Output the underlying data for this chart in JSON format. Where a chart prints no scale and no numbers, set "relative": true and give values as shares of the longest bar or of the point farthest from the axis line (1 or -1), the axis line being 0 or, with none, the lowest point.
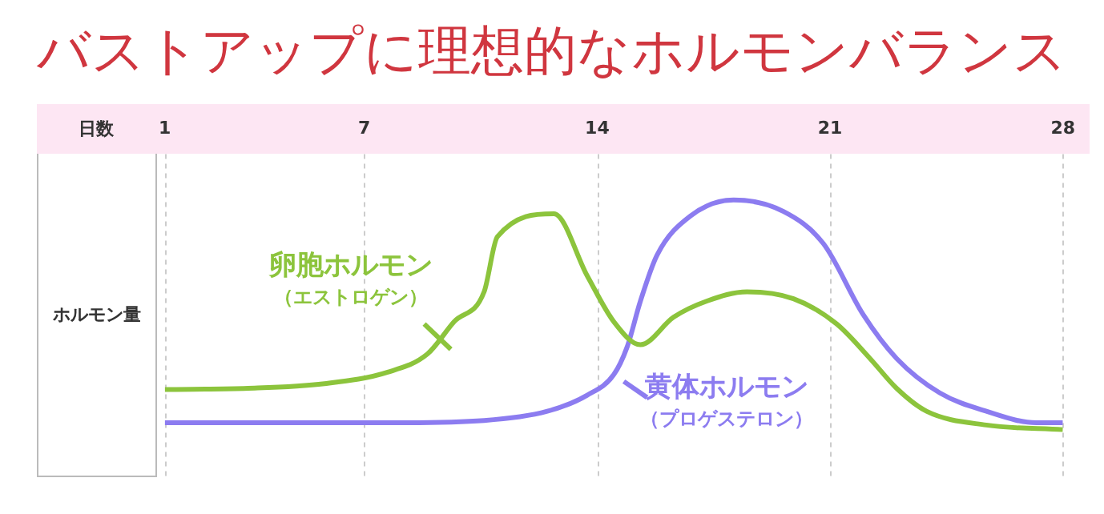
{
  "chart_data": {
    "type": "line",
    "title": "バストアップに理想的なホルモンバランス",
    "xlabel": "日数",
    "ylabel": "ホルモン量",
    "relative": true,
    "xlim": [
      1,
      28
    ],
    "xticks": [
      1,
      7,
      14,
      21,
      28
    ],
    "grid": "x",
    "marker": "none",
    "series": [
      {
        "name": "卵胞ホルモン（エストロゲン）",
        "color": "#8cc43c",
        "x": [
          1,
          3.5,
          5.8,
          7.7,
          8.9,
          9.7,
          10.6,
          11.0,
          12.7,
          13.7,
          14.5,
          15.3,
          16.3,
          17.3,
          18.5,
          19.9,
          21.2,
          22.2,
          23.0,
          23.9,
          25.7,
          28
        ],
        "values": [
          0.175,
          0.18,
          0.2,
          0.25,
          0.33,
          0.47,
          0.6,
          0.84,
          0.94,
          0.67,
          0.47,
          0.37,
          0.49,
          0.56,
          0.6,
          0.57,
          0.46,
          0.31,
          0.18,
          0.08,
          0.02,
          0
        ]
      },
      {
        "name": "黄体ホルモン（プロゲステロン）",
        "color": "#8c7cf0",
        "x": [
          1,
          7.7,
          10.6,
          12.5,
          13.7,
          14.5,
          14.9,
          15.3,
          15.8,
          16.8,
          18.1,
          19.6,
          20.8,
          22.0,
          23.0,
          24.3,
          25.7,
          27.2,
          28
        ],
        "values": [
          0.03,
          0.03,
          0.04,
          0.08,
          0.15,
          0.24,
          0.36,
          0.56,
          0.76,
          0.93,
          1,
          0.95,
          0.81,
          0.5,
          0.31,
          0.16,
          0.08,
          0.03,
          0.03
        ]
      }
    ]
  }
}
